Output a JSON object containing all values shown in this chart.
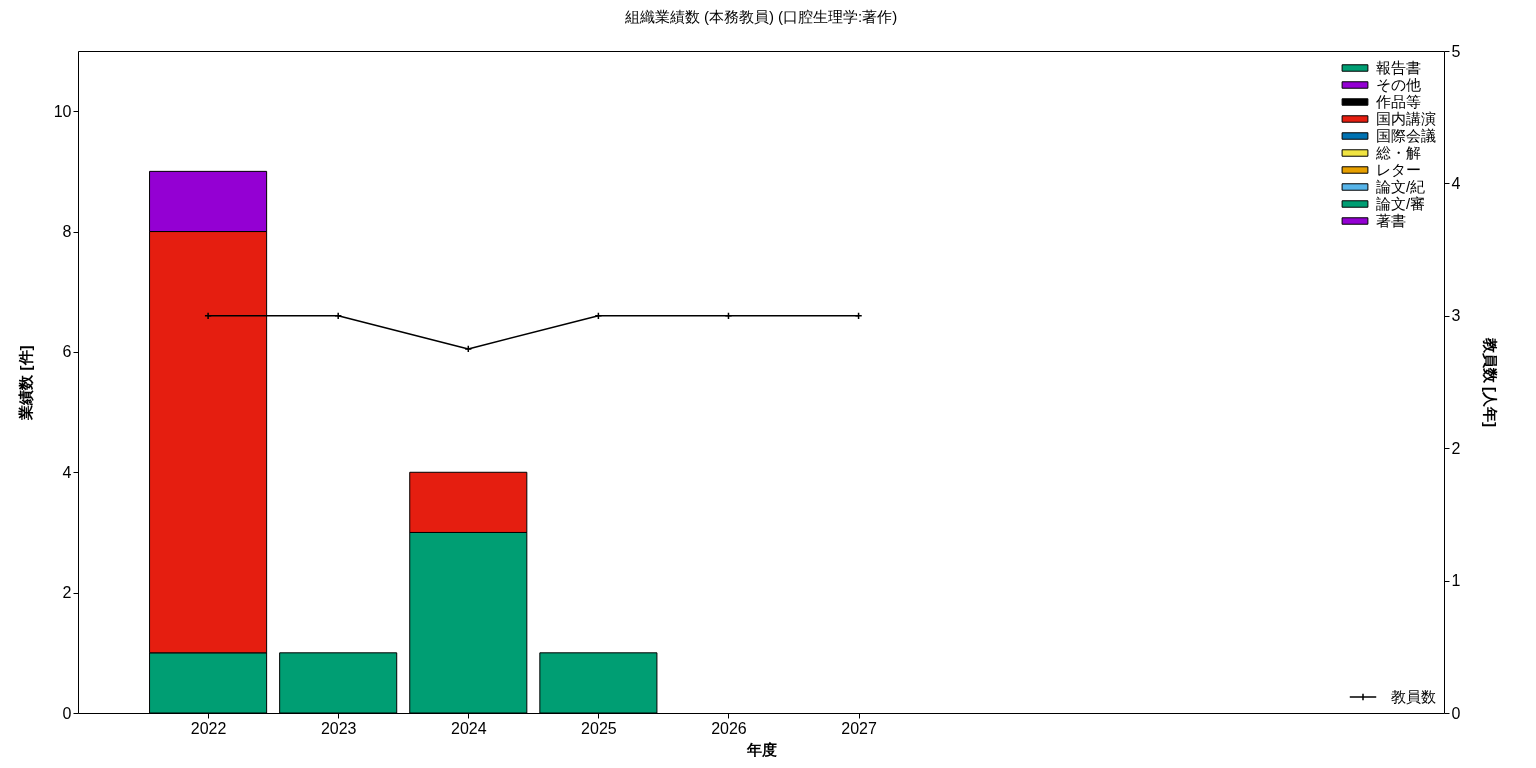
{
  "chart_data": {
    "type": "bar",
    "title": "組織業績数 (本務教員) (口腔生理学:著作)",
    "xlabel": "年度",
    "ylabel": "業績数 [件]",
    "y2label": "教員数 [人年]",
    "x": [
      2022,
      2023,
      2024,
      2025,
      2026,
      2027
    ],
    "xlim": [
      2021,
      2031.5
    ],
    "xticks": [
      2022,
      2023,
      2024,
      2025,
      2026,
      2027
    ],
    "ylim": [
      0,
      11
    ],
    "yticks": [
      0,
      2,
      4,
      6,
      8,
      10
    ],
    "y2lim": [
      0,
      5
    ],
    "y2ticks": [
      0,
      1,
      2,
      3,
      4,
      5
    ],
    "stacked": true,
    "legend": "top right",
    "grid": false,
    "marker": "cross",
    "line_style": "solid",
    "series": [
      {
        "name": "著書",
        "color": "#9400d3",
        "values": [
          0,
          0,
          0,
          0,
          0,
          0
        ]
      },
      {
        "name": "論文/審",
        "color": "#009e73",
        "values": [
          1,
          1,
          3,
          1,
          0,
          0
        ]
      },
      {
        "name": "論文/紀",
        "color": "#56b4e9",
        "values": [
          0,
          0,
          0,
          0,
          0,
          0
        ]
      },
      {
        "name": "レター",
        "color": "#e69f00",
        "values": [
          0,
          0,
          0,
          0,
          0,
          0
        ]
      },
      {
        "name": "総・解",
        "color": "#f0e442",
        "values": [
          0,
          0,
          0,
          0,
          0,
          0
        ]
      },
      {
        "name": "国際会議",
        "color": "#0072b2",
        "values": [
          0,
          0,
          0,
          0,
          0,
          0
        ]
      },
      {
        "name": "国内講演",
        "color": "#e51e10",
        "values": [
          7,
          0,
          1,
          0,
          0,
          0
        ]
      },
      {
        "name": "作品等",
        "color": "#000000",
        "values": [
          0,
          0,
          0,
          0,
          0,
          0
        ]
      },
      {
        "name": "その他",
        "color": "#9400d3",
        "values": [
          1,
          0,
          0,
          0,
          0,
          0
        ]
      },
      {
        "name": "報告書",
        "color": "#009e73",
        "values": [
          0,
          0,
          0,
          0,
          0,
          0
        ]
      },
      {
        "name": "教員数",
        "type": "line",
        "axis": "y2",
        "color": "#000000",
        "values": [
          3,
          3,
          2.75,
          3,
          3,
          3
        ]
      }
    ]
  }
}
